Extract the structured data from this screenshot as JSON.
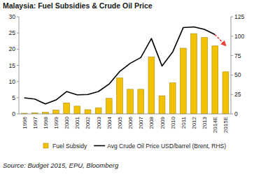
{
  "chart_data": {
    "type": "bar",
    "title": "Malaysia: Fuel Subsidies & Crude Oil Price",
    "source": "Source: Budget 2015, EPU, Bloomberg",
    "categories": [
      "1996",
      "1997",
      "1998",
      "1999",
      "2000",
      "2001",
      "2002",
      "2003",
      "2004",
      "2005",
      "2006",
      "2007",
      "2008",
      "2009",
      "2010",
      "2011",
      "2012",
      "2013",
      "2014E",
      "2015E"
    ],
    "series": [
      {
        "name": "Fuel Subsidy",
        "type": "bar",
        "color": "#f2c200",
        "values": [
          0.2,
          0.3,
          0.5,
          1.2,
          3.4,
          2.4,
          1.3,
          1.9,
          4.8,
          11.1,
          7.6,
          7.6,
          17.6,
          5.6,
          9.6,
          20.3,
          24.8,
          23.6,
          21.0,
          13.0
        ]
      },
      {
        "name": "Avg Crude Oil Price USD/barrel (Brent, RHS)",
        "type": "line",
        "axis": "y2",
        "color": "#000000",
        "values": [
          20.7,
          19.1,
          12.8,
          17.9,
          28.7,
          24.5,
          25.0,
          28.8,
          38.3,
          54.5,
          65.1,
          72.5,
          97.0,
          61.7,
          79.5,
          111.0,
          112.0,
          108.8,
          102.0,
          null
        ]
      },
      {
        "type": "line",
        "axis": "y2",
        "color": "#e8403a",
        "line_style": "dashed",
        "marker": "arrow",
        "values": [
          null,
          null,
          null,
          null,
          null,
          null,
          null,
          null,
          null,
          null,
          null,
          null,
          null,
          null,
          null,
          null,
          null,
          null,
          102.0,
          88.0
        ]
      }
    ],
    "ylim": [
      0,
      30
    ],
    "yticks": [
      0,
      5,
      10,
      15,
      20,
      25,
      30
    ],
    "y2lim": [
      0,
      125
    ],
    "y2ticks": [
      0,
      25,
      50,
      75,
      100,
      125
    ],
    "grid": false,
    "legend": "bottom"
  }
}
